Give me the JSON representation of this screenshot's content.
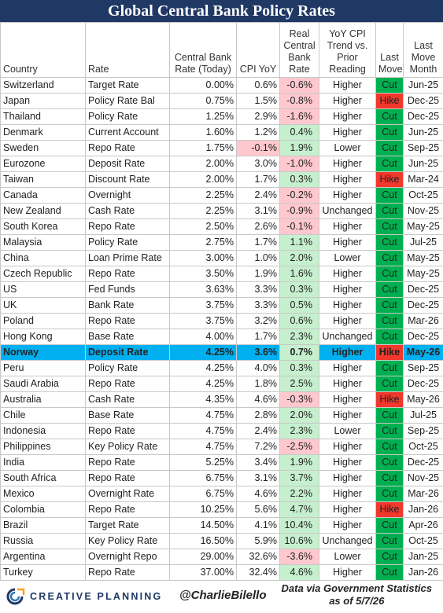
{
  "header": {
    "title": "Global Central Bank Policy Rates"
  },
  "table": {
    "columns": [
      "Country",
      "Rate",
      "Central Bank Rate (Today)",
      "CPI YoY",
      "Real Central Bank Rate",
      "YoY CPI Trend vs. Prior Reading",
      "Last Move",
      "Last Move Month"
    ],
    "highlight_row": 17,
    "colors": {
      "negative": "#ffc7ce",
      "positive": "#c6efce",
      "Cut": "#00b050",
      "Hike": "#f2372c",
      "highlight": "#00b0f0"
    },
    "rows": [
      [
        "Switzerland",
        "Target Rate",
        "0.00%",
        "0.6%",
        "-0.6%",
        "Higher",
        "Cut",
        "Jun-25"
      ],
      [
        "Japan",
        "Policy Rate Bal",
        "0.75%",
        "1.5%",
        "-0.8%",
        "Higher",
        "Hike",
        "Dec-25"
      ],
      [
        "Thailand",
        "Policy Rate",
        "1.25%",
        "2.9%",
        "-1.6%",
        "Higher",
        "Cut",
        "Dec-25"
      ],
      [
        "Denmark",
        "Current Account",
        "1.60%",
        "1.2%",
        "0.4%",
        "Higher",
        "Cut",
        "Jun-25"
      ],
      [
        "Sweden",
        "Repo Rate",
        "1.75%",
        "-0.1%",
        "1.9%",
        "Lower",
        "Cut",
        "Sep-25"
      ],
      [
        "Eurozone",
        "Deposit Rate",
        "2.00%",
        "3.0%",
        "-1.0%",
        "Higher",
        "Cut",
        "Jun-25"
      ],
      [
        "Taiwan",
        "Discount Rate",
        "2.00%",
        "1.7%",
        "0.3%",
        "Higher",
        "Hike",
        "Mar-24"
      ],
      [
        "Canada",
        "Overnight",
        "2.25%",
        "2.4%",
        "-0.2%",
        "Higher",
        "Cut",
        "Oct-25"
      ],
      [
        "New Zealand",
        "Cash Rate",
        "2.25%",
        "3.1%",
        "-0.9%",
        "Unchanged",
        "Cut",
        "Nov-25"
      ],
      [
        "South Korea",
        "Repo Rate",
        "2.50%",
        "2.6%",
        "-0.1%",
        "Higher",
        "Cut",
        "May-25"
      ],
      [
        "Malaysia",
        "Policy Rate",
        "2.75%",
        "1.7%",
        "1.1%",
        "Higher",
        "Cut",
        "Jul-25"
      ],
      [
        "China",
        "Loan Prime Rate",
        "3.00%",
        "1.0%",
        "2.0%",
        "Lower",
        "Cut",
        "May-25"
      ],
      [
        "Czech Republic",
        "Repo Rate",
        "3.50%",
        "1.9%",
        "1.6%",
        "Higher",
        "Cut",
        "May-25"
      ],
      [
        "US",
        "Fed Funds",
        "3.63%",
        "3.3%",
        "0.3%",
        "Higher",
        "Cut",
        "Dec-25"
      ],
      [
        "UK",
        "Bank Rate",
        "3.75%",
        "3.3%",
        "0.5%",
        "Higher",
        "Cut",
        "Dec-25"
      ],
      [
        "Poland",
        "Repo Rate",
        "3.75%",
        "3.2%",
        "0.6%",
        "Higher",
        "Cut",
        "Mar-26"
      ],
      [
        "Hong Kong",
        "Base Rate",
        "4.00%",
        "1.7%",
        "2.3%",
        "Unchanged",
        "Cut",
        "Dec-25"
      ],
      [
        "Norway",
        "Deposit Rate",
        "4.25%",
        "3.6%",
        "0.7%",
        "Higher",
        "Hike",
        "May-26"
      ],
      [
        "Peru",
        "Policy Rate",
        "4.25%",
        "4.0%",
        "0.3%",
        "Higher",
        "Cut",
        "Sep-25"
      ],
      [
        "Saudi Arabia",
        "Repo Rate",
        "4.25%",
        "1.8%",
        "2.5%",
        "Higher",
        "Cut",
        "Dec-25"
      ],
      [
        "Australia",
        "Cash Rate",
        "4.35%",
        "4.6%",
        "-0.3%",
        "Higher",
        "Hike",
        "May-26"
      ],
      [
        "Chile",
        "Base Rate",
        "4.75%",
        "2.8%",
        "2.0%",
        "Higher",
        "Cut",
        "Jul-25"
      ],
      [
        "Indonesia",
        "Repo Rate",
        "4.75%",
        "2.4%",
        "2.3%",
        "Lower",
        "Cut",
        "Sep-25"
      ],
      [
        "Philippines",
        "Key Policy Rate",
        "4.75%",
        "7.2%",
        "-2.5%",
        "Higher",
        "Cut",
        "Oct-25"
      ],
      [
        "India",
        "Repo Rate",
        "5.25%",
        "3.4%",
        "1.9%",
        "Higher",
        "Cut",
        "Dec-25"
      ],
      [
        "South Africa",
        "Repo Rate",
        "6.75%",
        "3.1%",
        "3.7%",
        "Higher",
        "Cut",
        "Nov-25"
      ],
      [
        "Mexico",
        "Overnight Rate",
        "6.75%",
        "4.6%",
        "2.2%",
        "Higher",
        "Cut",
        "Mar-26"
      ],
      [
        "Colombia",
        "Repo Rate",
        "10.25%",
        "5.6%",
        "4.7%",
        "Higher",
        "Hike",
        "Jan-26"
      ],
      [
        "Brazil",
        "Target Rate",
        "14.50%",
        "4.1%",
        "10.4%",
        "Higher",
        "Cut",
        "Apr-26"
      ],
      [
        "Russia",
        "Key Policy Rate",
        "16.50%",
        "5.9%",
        "10.6%",
        "Unchanged",
        "Cut",
        "Oct-25"
      ],
      [
        "Argentina",
        "Overnight Repo",
        "29.00%",
        "32.6%",
        "-3.6%",
        "Lower",
        "Cut",
        "Jan-25"
      ],
      [
        "Turkey",
        "Repo Rate",
        "37.00%",
        "32.4%",
        "4.6%",
        "Higher",
        "Cut",
        "Jan-26"
      ]
    ]
  },
  "footer": {
    "logo": "CREATIVE PLANNING",
    "handle": "@CharlieBilello",
    "source_line1": "Data via Government Statistics",
    "source_line2": "as of 5/7/26"
  }
}
